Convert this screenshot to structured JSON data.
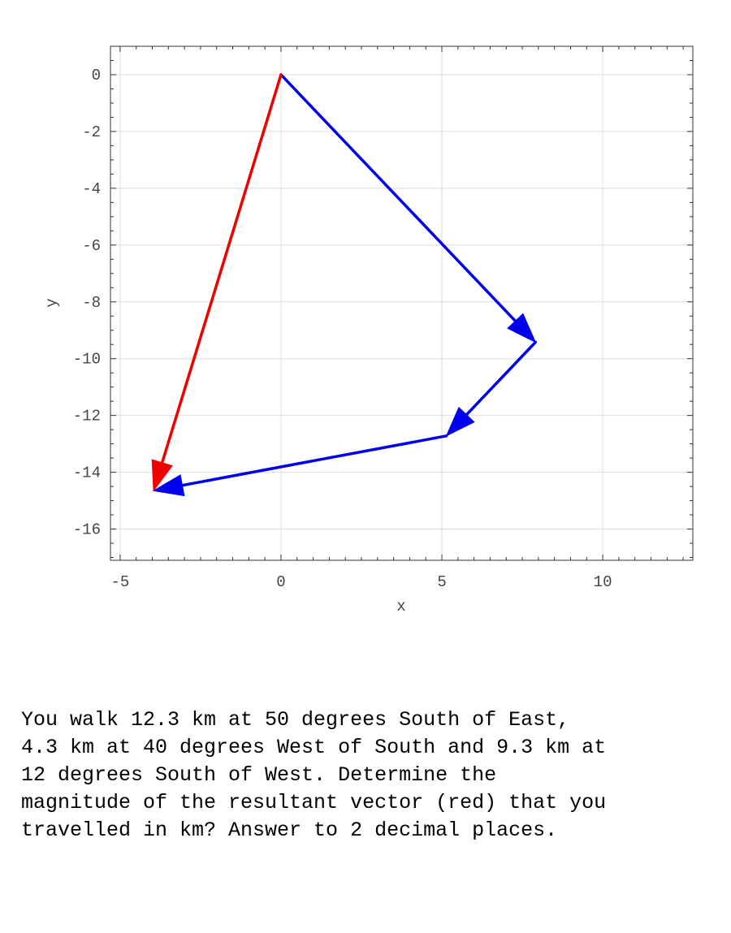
{
  "chart_data": {
    "type": "vector-plot",
    "xlabel": "x",
    "ylabel": "y",
    "xlim": [
      -5.3,
      12.8
    ],
    "ylim": [
      -17.1,
      1.0
    ],
    "x_ticks": [
      -5,
      0,
      5,
      10
    ],
    "y_ticks": [
      0,
      -2,
      -4,
      -6,
      -8,
      -10,
      -12,
      -14,
      -16
    ],
    "grid": true,
    "vectors": [
      {
        "name": "",
        "from": [
          0,
          0
        ],
        "to": [
          7.91,
          -9.42
        ],
        "color": "#0000ee"
      },
      {
        "name": "",
        "from": [
          7.91,
          -9.42
        ],
        "to": [
          5.14,
          -12.72
        ],
        "color": "#0000ee"
      },
      {
        "name": "",
        "from": [
          5.14,
          -12.72
        ],
        "to": [
          -3.96,
          -14.65
        ],
        "color": "#0000ee"
      },
      {
        "name": "",
        "from": [
          0,
          0
        ],
        "to": [
          -3.96,
          -14.65
        ],
        "color": "#ee0000"
      }
    ]
  },
  "question": {
    "text": "You walk 12.3 km at 50 degrees South of East,\n4.3 km at 40 degrees West of South and 9.3 km at\n12 degrees South of West.  Determine the\nmagnitude of the resultant vector (red) that you\ntravelled in km? Answer to 2 decimal places."
  }
}
